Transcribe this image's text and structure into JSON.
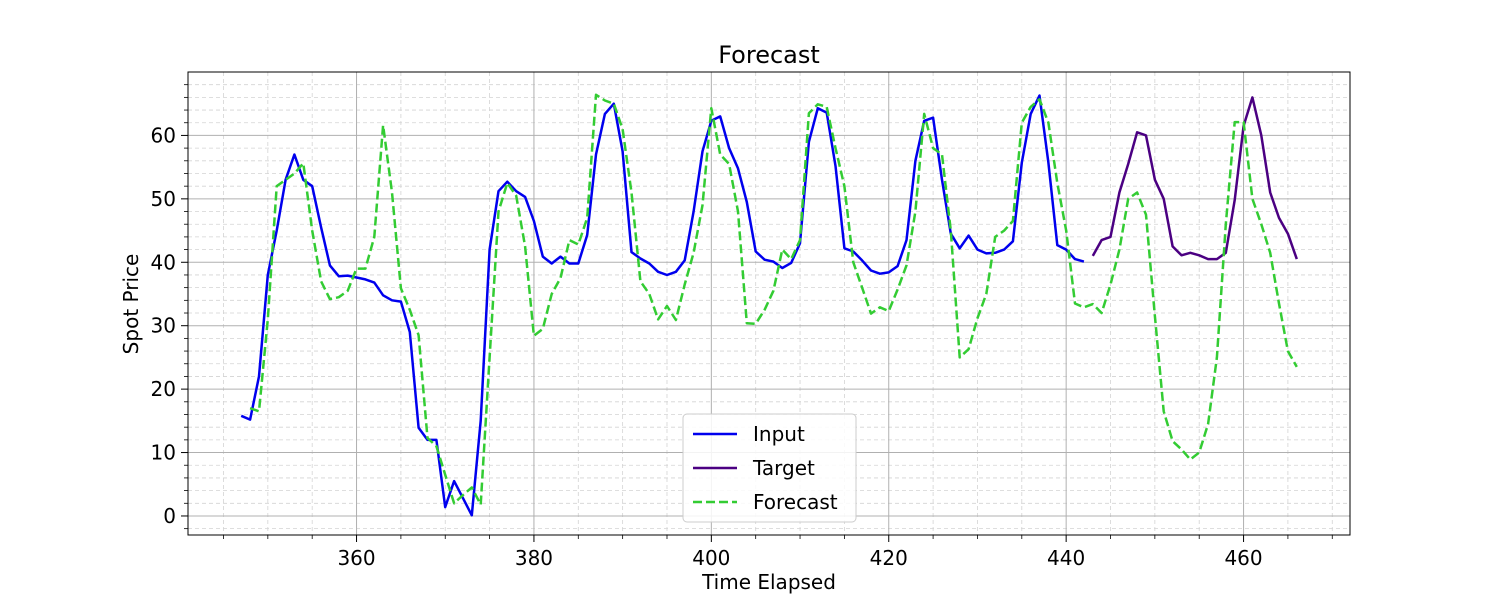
{
  "chart_data": {
    "type": "line",
    "title": "Forecast",
    "xlabel": "Time Elapsed",
    "ylabel": "Spot Price",
    "xlim": [
      341,
      472
    ],
    "ylim": [
      -3,
      70
    ],
    "xticks": [
      360,
      380,
      400,
      420,
      440,
      460
    ],
    "yticks": [
      0,
      10,
      20,
      30,
      40,
      50,
      60
    ],
    "grid": true,
    "minor_grid": true,
    "legend_position": "lower center",
    "series": [
      {
        "name": "Input",
        "color": "#0000ee",
        "style": "solid",
        "x": [
          347,
          348,
          349,
          350,
          351,
          352,
          353,
          354,
          355,
          356,
          357,
          358,
          359,
          360,
          361,
          362,
          363,
          364,
          365,
          366,
          367,
          368,
          369,
          370,
          371,
          372,
          373,
          374,
          375,
          376,
          377,
          378,
          379,
          380,
          381,
          382,
          383,
          384,
          385,
          386,
          387,
          388,
          389,
          390,
          391,
          392,
          393,
          394,
          395,
          396,
          397,
          398,
          399,
          400,
          401,
          402,
          403,
          404,
          405,
          406,
          407,
          408,
          409,
          410,
          411,
          412,
          413,
          414,
          415,
          416,
          417,
          418,
          419,
          420,
          421,
          422,
          423,
          424,
          425,
          426,
          427,
          428,
          429,
          430,
          431,
          432,
          433,
          434,
          435,
          436,
          437,
          438,
          439,
          440,
          441,
          442
        ],
        "y": [
          15.8,
          15.2,
          22,
          38,
          45,
          53,
          57,
          53,
          52,
          45.5,
          39.5,
          37.8,
          37.9,
          37.6,
          37.3,
          36.8,
          34.8,
          34,
          33.8,
          29,
          13.9,
          12,
          12,
          1.4,
          5.5,
          2.8,
          0.1,
          15,
          42,
          51.2,
          52.7,
          51.2,
          50.3,
          46.5,
          40.9,
          39.8,
          40.9,
          39.8,
          39.8,
          44.3,
          57,
          63.4,
          65,
          57.5,
          41.6,
          40.6,
          39.8,
          38.5,
          38,
          38.5,
          40.3,
          48,
          57.5,
          62.3,
          63,
          58,
          54.8,
          49.5,
          41.7,
          40.4,
          40.1,
          39.1,
          39.9,
          43,
          59,
          64.3,
          63.6,
          55.2,
          42.2,
          41.7,
          40.3,
          38.7,
          38.2,
          38.4,
          39.4,
          43.5,
          56,
          62.3,
          62.8,
          53,
          44.5,
          42.2,
          44.2,
          42,
          41.4,
          41.5,
          42,
          43.3,
          55.7,
          63.4,
          66.3,
          55.7,
          42.7,
          42,
          40.5,
          40.1
        ]
      },
      {
        "name": "Target",
        "color": "#4b0082",
        "style": "solid",
        "x": [
          443,
          444,
          445,
          446,
          447,
          448,
          449,
          450,
          451,
          452,
          453,
          454,
          455,
          456,
          457,
          458,
          459,
          460,
          461,
          462,
          463,
          464,
          465,
          466
        ],
        "y": [
          41,
          43.5,
          44,
          51,
          55.5,
          60.5,
          60,
          53,
          50,
          42.5,
          41.1,
          41.5,
          41.1,
          40.5,
          40.5,
          41.5,
          49.8,
          61.5,
          66,
          60,
          51,
          47,
          44.5,
          40.5
        ]
      },
      {
        "name": "Forecast",
        "color": "#33cc33",
        "style": "dashed",
        "x": [
          348,
          349,
          350,
          351,
          352,
          353,
          354,
          355,
          356,
          357,
          358,
          359,
          360,
          361,
          362,
          363,
          364,
          365,
          366,
          367,
          368,
          369,
          370,
          371,
          372,
          373,
          374,
          375,
          376,
          377,
          378,
          379,
          380,
          381,
          382,
          383,
          384,
          385,
          386,
          387,
          388,
          389,
          390,
          391,
          392,
          393,
          394,
          395,
          396,
          397,
          398,
          399,
          400,
          401,
          402,
          403,
          404,
          405,
          406,
          407,
          408,
          409,
          410,
          411,
          412,
          413,
          414,
          415,
          416,
          417,
          418,
          419,
          420,
          421,
          422,
          423,
          424,
          425,
          426,
          427,
          428,
          429,
          430,
          431,
          432,
          433,
          434,
          435,
          436,
          437,
          438,
          439,
          440,
          441,
          442,
          443,
          444,
          445,
          446,
          447,
          448,
          449,
          450,
          451,
          452,
          453,
          454,
          455,
          456,
          457,
          458,
          459,
          460,
          461,
          462,
          463,
          464,
          465,
          466
        ],
        "y": [
          17,
          16.5,
          31,
          52,
          53,
          54,
          55.6,
          45,
          37,
          34.2,
          34.5,
          35.5,
          39,
          39,
          44,
          61.6,
          51,
          35.9,
          32.5,
          28.5,
          12.3,
          11,
          6.5,
          2,
          3.3,
          4.5,
          1.8,
          25,
          48,
          52.5,
          50.5,
          42.5,
          28.4,
          29.5,
          35,
          37.5,
          43.5,
          42.8,
          47,
          66.4,
          65.5,
          65,
          61,
          51,
          37,
          35,
          31,
          33.1,
          30.9,
          36.5,
          41.5,
          49,
          64.3,
          57,
          55.5,
          48,
          30.4,
          30.3,
          32.5,
          35.5,
          42,
          40.5,
          43.5,
          63.5,
          64.9,
          64.5,
          58,
          52,
          40,
          36,
          31.9,
          32.9,
          32.3,
          35.7,
          39.5,
          48,
          63.4,
          58,
          57,
          45,
          25,
          26.3,
          31.2,
          35,
          44,
          45,
          46.5,
          62,
          64.5,
          65.7,
          62,
          52.5,
          45,
          33.5,
          32.9,
          33.4,
          32,
          36.5,
          42,
          50,
          51,
          47.5,
          31.5,
          16.5,
          11.8,
          10.5,
          8.9,
          10,
          14.5,
          25,
          46,
          62.1,
          62.1,
          50,
          46,
          41.5,
          33.5,
          26,
          23.5
        ]
      }
    ]
  }
}
